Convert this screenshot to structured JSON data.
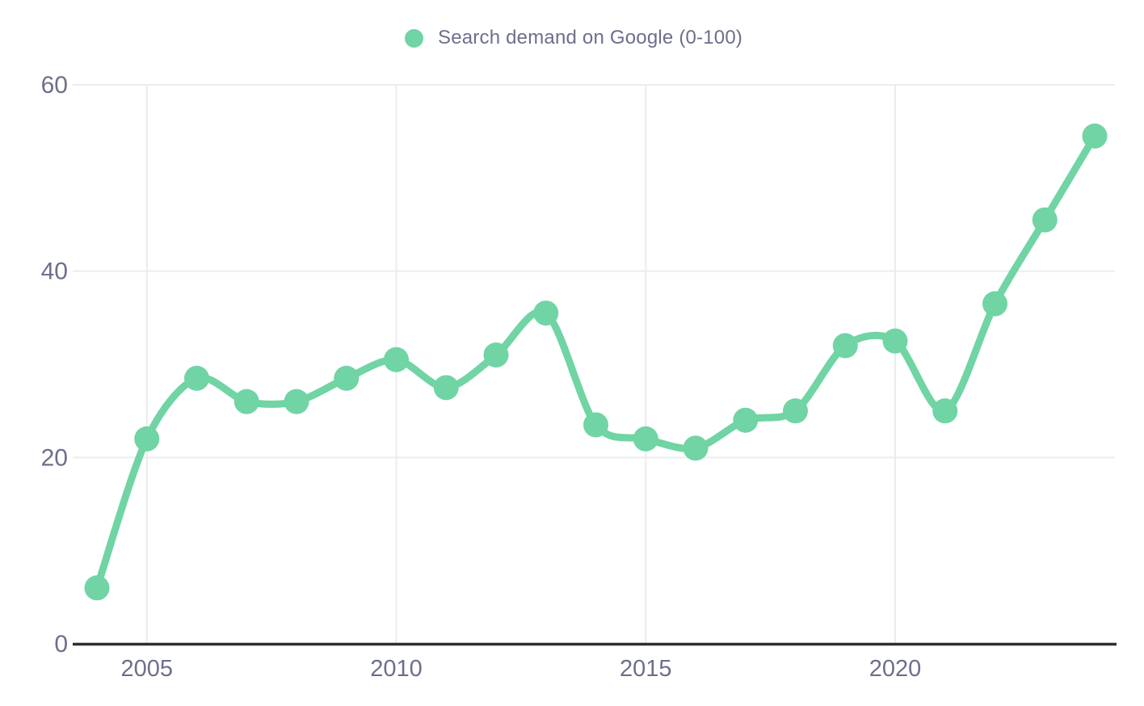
{
  "legend": {
    "label": "Search demand on Google (0-100)",
    "marker_color": "#70d4a4"
  },
  "chart_data": {
    "type": "line",
    "title": "",
    "x": [
      2004,
      2005,
      2006,
      2007,
      2008,
      2009,
      2010,
      2011,
      2012,
      2013,
      2014,
      2015,
      2016,
      2017,
      2018,
      2019,
      2020,
      2021,
      2022,
      2023,
      2024
    ],
    "series": [
      {
        "name": "Search demand on Google (0-100)",
        "color": "#70d4a4",
        "values": [
          6,
          22,
          28.5,
          26,
          26,
          28.5,
          30.5,
          27.5,
          31,
          35.5,
          23.5,
          22,
          21,
          24,
          25,
          32,
          32.5,
          25,
          36.5,
          45.5,
          54.5
        ]
      }
    ],
    "xlabel": "",
    "ylabel": "",
    "ylim": [
      0,
      60
    ],
    "yticks": [
      0,
      20,
      40,
      60
    ],
    "xticks": [
      2005,
      2010,
      2015,
      2020
    ],
    "grid": true,
    "legend_position": "top",
    "point_style": "circle",
    "line_smoothing": true
  },
  "colors": {
    "line": "#70d4a4",
    "grid": "#ececec",
    "axis": "#2f2f2f",
    "tick_label": "#6c6f8c",
    "background": "#ffffff"
  }
}
